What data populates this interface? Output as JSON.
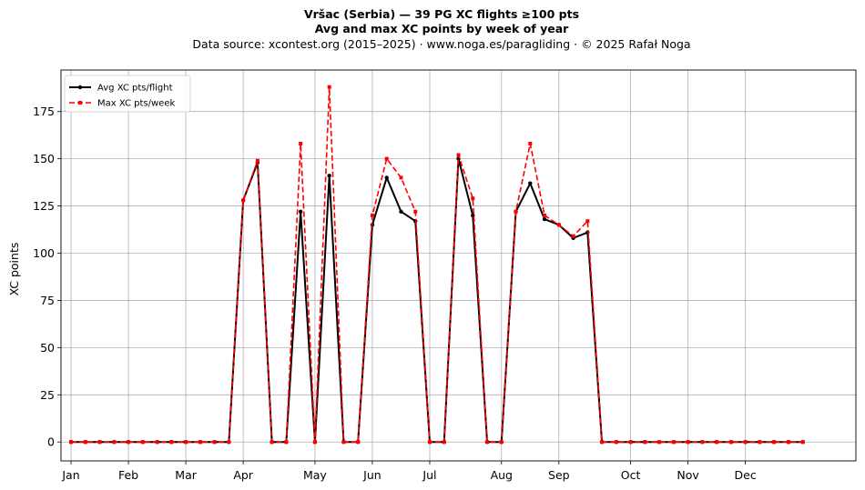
{
  "chart_data": {
    "type": "line",
    "title_line1": "Vršac (Serbia)  —  39 PG XC flights ≥100 pts",
    "title_line2": "Avg and max XC points by week of year",
    "subtitle": "Data source: xcontest.org (2015–2025)  ·  www.noga.es/paragliding  ·  © 2025 Rafał Noga",
    "xlabel": "",
    "ylabel": "XC points",
    "ylim": [
      -10,
      197
    ],
    "yticks": [
      0,
      25,
      50,
      75,
      100,
      125,
      150,
      175
    ],
    "xlim": [
      -0.7,
      54.7
    ],
    "month_ticks": [
      {
        "label": "Jan",
        "week": 0
      },
      {
        "label": "Feb",
        "week": 4
      },
      {
        "label": "Mar",
        "week": 8
      },
      {
        "label": "Apr",
        "week": 12
      },
      {
        "label": "May",
        "week": 17
      },
      {
        "label": "Jun",
        "week": 21
      },
      {
        "label": "Jul",
        "week": 25
      },
      {
        "label": "Aug",
        "week": 30
      },
      {
        "label": "Sep",
        "week": 34
      },
      {
        "label": "Oct",
        "week": 39
      },
      {
        "label": "Nov",
        "week": 43
      },
      {
        "label": "Dec",
        "week": 47
      }
    ],
    "grid": true,
    "legend_position": "top-left",
    "x": [
      0,
      1,
      2,
      3,
      4,
      5,
      6,
      7,
      8,
      9,
      10,
      11,
      12,
      13,
      14,
      15,
      16,
      17,
      18,
      19,
      20,
      21,
      22,
      23,
      24,
      25,
      26,
      27,
      28,
      29,
      30,
      31,
      32,
      33,
      34,
      35,
      36,
      37,
      38,
      39,
      40,
      41,
      42,
      43,
      44,
      45,
      46,
      47,
      48,
      49,
      50,
      51
    ],
    "series": [
      {
        "name": "Avg XC pts/flight",
        "color": "#000000",
        "style": "solid",
        "marker": "circle",
        "values": [
          0,
          0,
          0,
          0,
          0,
          0,
          0,
          0,
          0,
          0,
          0,
          0,
          128,
          148,
          0,
          0,
          122,
          0,
          141,
          0,
          0,
          115,
          140,
          122,
          117,
          0,
          0,
          150,
          120,
          0,
          0,
          122,
          137,
          118,
          115,
          108,
          111,
          0,
          0,
          0,
          0,
          0,
          0,
          0,
          0,
          0,
          0,
          0,
          0,
          0,
          0,
          0
        ]
      },
      {
        "name": "Max XC pts/week",
        "color": "#ff0000",
        "style": "dashed",
        "marker": "square",
        "values": [
          0,
          0,
          0,
          0,
          0,
          0,
          0,
          0,
          0,
          0,
          0,
          0,
          128,
          149,
          0,
          0,
          158,
          0,
          188,
          0,
          0,
          120,
          150,
          140,
          122,
          0,
          0,
          152,
          129,
          0,
          0,
          122,
          158,
          120,
          115,
          109,
          117,
          0,
          0,
          0,
          0,
          0,
          0,
          0,
          0,
          0,
          0,
          0,
          0,
          0,
          0,
          0
        ]
      }
    ]
  }
}
